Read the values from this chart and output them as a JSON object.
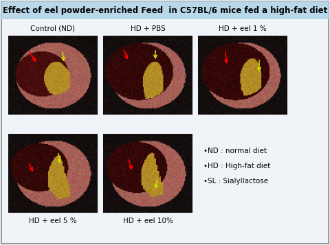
{
  "title": "Effect of eel powder-enriched Feed  in C57BL/6 mice fed a high-fat diet",
  "title_bg": "#b8d8ea",
  "title_fontsize": 8.5,
  "background_color": "#f0f4f8",
  "panel_labels_top": [
    "Control (ND)",
    "HD + PBS",
    "HD + eel 1 %"
  ],
  "panel_labels_bottom": [
    "HD + eel 5 %",
    "HD + eel 10%"
  ],
  "label_fontsize": 7.5,
  "legend_lines": [
    "•ND : normal diet",
    "•HD : High-fat diet",
    "•SL : Sialyllactose"
  ],
  "legend_fontsize": 7.5,
  "fig_width": 4.8,
  "fig_height": 3.57,
  "dpi": 100
}
